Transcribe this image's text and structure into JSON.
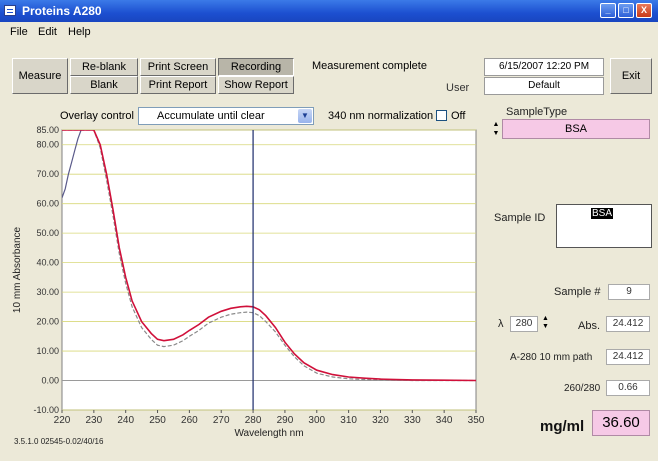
{
  "window": {
    "title": "Proteins A280",
    "controls": [
      "_",
      "□",
      "X"
    ]
  },
  "menu": [
    "File",
    "Edit",
    "Help"
  ],
  "toolbar": {
    "measure": "Measure",
    "reblank": "Re-blank",
    "blank": "Blank",
    "print_screen": "Print Screen",
    "print_report": "Print Report",
    "recording": "Recording",
    "show_report": "Show Report",
    "status": "Measurement complete",
    "datetime": "6/15/2007 12:20 PM",
    "user_label": "User",
    "user": "Default",
    "exit": "Exit"
  },
  "overlay": {
    "label": "Overlay control",
    "value": "Accumulate until clear",
    "normalization_label": "340 nm normalization",
    "off_label": "Off"
  },
  "chart_data": {
    "type": "line",
    "xlabel": "Wavelength nm",
    "ylabel": "10 mm Absorbance",
    "xlim": [
      220,
      350
    ],
    "ylim": [
      -10,
      85
    ],
    "x_ticks": [
      220,
      230,
      240,
      250,
      260,
      270,
      280,
      290,
      300,
      310,
      320,
      330,
      340,
      350
    ],
    "y_ticks": [
      "85.00",
      "80.00",
      "70.00",
      "60.00",
      "50.00",
      "40.00",
      "30.00",
      "20.00",
      "10.00",
      "0.00",
      "-10.00"
    ],
    "y_tick_values": [
      85,
      80,
      70,
      60,
      50,
      40,
      30,
      20,
      10,
      0,
      -10
    ],
    "cursor_x": 280,
    "grid": true,
    "series": [
      {
        "color": "#d0103a",
        "x": [
          220,
          225,
          230,
          232,
          234,
          236,
          238,
          240,
          242,
          245,
          248,
          250,
          252,
          255,
          258,
          260,
          263,
          266,
          270,
          273,
          276,
          278,
          280,
          282,
          284,
          287,
          290,
          293,
          296,
          300,
          305,
          310,
          315,
          320,
          325,
          330,
          340,
          350
        ],
        "y": [
          85,
          85,
          85,
          80,
          70,
          58,
          45,
          35,
          27,
          20,
          16,
          14,
          13.5,
          14,
          15.5,
          17,
          19,
          21.5,
          23.5,
          24.5,
          25,
          25.2,
          25,
          24,
          22,
          18,
          13,
          9,
          6,
          3.5,
          2,
          1.2,
          0.8,
          0.5,
          0.3,
          0.2,
          0.1,
          0
        ]
      },
      {
        "color": "#8a8a8a",
        "x": [
          220,
          225,
          230,
          232,
          234,
          236,
          238,
          240,
          242,
          245,
          248,
          250,
          252,
          255,
          258,
          260,
          263,
          266,
          270,
          273,
          276,
          278,
          280,
          282,
          284,
          287,
          290,
          293,
          296,
          300,
          305,
          310,
          315,
          320,
          325,
          330,
          340,
          350
        ],
        "y": [
          85,
          85,
          85,
          79,
          68,
          56,
          43,
          33,
          25,
          18,
          14,
          12,
          11.5,
          12,
          13.5,
          15,
          17,
          19.5,
          21.5,
          22.5,
          23,
          23.2,
          23,
          22,
          20,
          16.5,
          12,
          8,
          5,
          2.5,
          1.2,
          0.6,
          0.3,
          0.2,
          0.1,
          0,
          0,
          0
        ]
      },
      {
        "color": "#5a5a8a",
        "x": [
          220,
          221,
          222,
          223,
          224,
          225,
          226,
          227
        ],
        "y": [
          62,
          65,
          70,
          74,
          78,
          82,
          85,
          85
        ]
      }
    ]
  },
  "version": "3.5.1.0 02545-0.02/40/16",
  "right": {
    "sample_type_label": "SampleType",
    "sample_type": "BSA",
    "sample_id_label": "Sample ID",
    "sample_id": "BSA",
    "sample_num_label": "Sample #",
    "sample_num": "9",
    "lambda_symbol": "λ",
    "lambda": "280",
    "abs_label": "Abs.",
    "abs": "24.412",
    "a280_label": "A-280 10 mm path",
    "a280": "24.412",
    "ratio_label": "260/280",
    "ratio": "0.66",
    "conc_label": "mg/ml",
    "conc": "36.60"
  }
}
